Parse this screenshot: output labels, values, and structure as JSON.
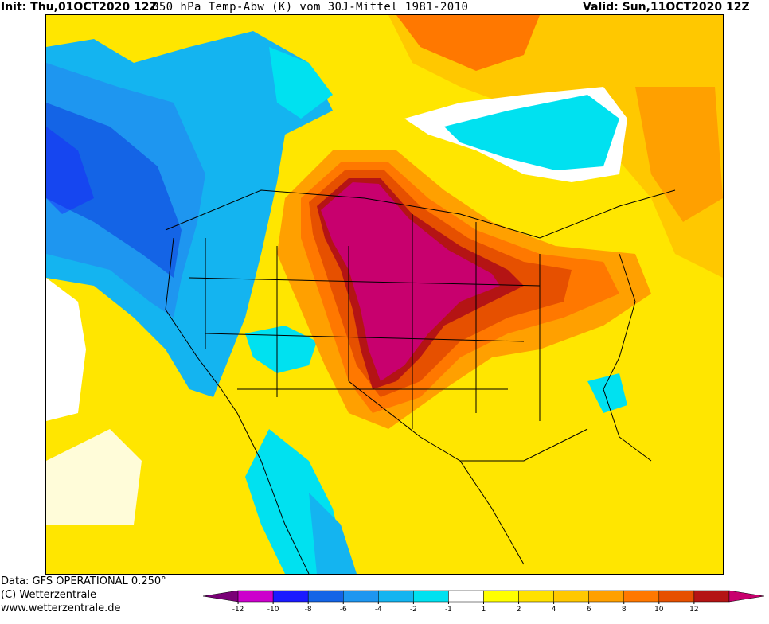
{
  "header": {
    "init": "Init: Thu,01OCT2020 12Z",
    "title": "850 hPa Temp-Abw (K) vom 30J-Mittel 1981-2010",
    "valid": "Valid: Sun,11OCT2020 12Z"
  },
  "footer": {
    "data_line": "Data: GFS OPERATIONAL 0.250°",
    "copyright": "(C) Wetterzentrale",
    "url": "www.wetterzentrale.de"
  },
  "legend": {
    "bins": [
      {
        "color": "#7a0077"
      },
      {
        "color": "#cc00cc"
      },
      {
        "color": "#1a1aff"
      },
      {
        "color": "#1464e6"
      },
      {
        "color": "#1e96f0"
      },
      {
        "color": "#14b4f0"
      },
      {
        "color": "#00e1f0"
      },
      {
        "color": "#ffffff"
      },
      {
        "color": "#ffff00"
      },
      {
        "color": "#ffe100"
      },
      {
        "color": "#ffc800"
      },
      {
        "color": "#ffa000"
      },
      {
        "color": "#ff7800"
      },
      {
        "color": "#e65000"
      },
      {
        "color": "#b41414"
      },
      {
        "color": "#c8006e"
      }
    ],
    "ticks": [
      "-12",
      "-10",
      "-8",
      "-6",
      "-4",
      "-2",
      "-1",
      "1",
      "2",
      "4",
      "6",
      "8",
      "10",
      "12"
    ]
  },
  "colors": {
    "positive_max": "#c8006e",
    "negative_max": "#1464e6"
  }
}
